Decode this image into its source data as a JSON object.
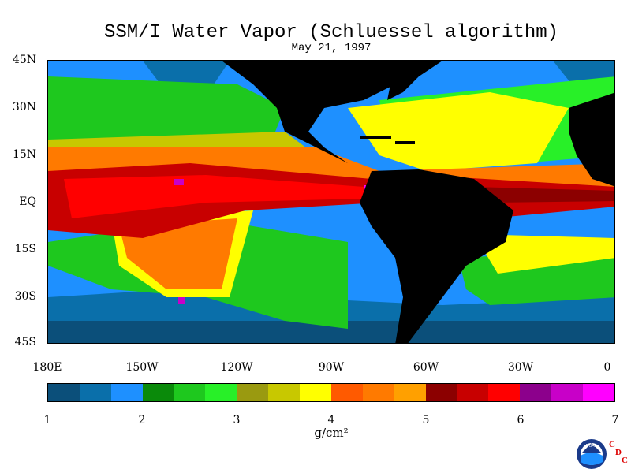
{
  "title": "SSM/I Water Vapor (Schluessel algorithm)",
  "subtitle": "May 21, 1997",
  "lat_labels": [
    "45N",
    "30N",
    "15N",
    "EQ",
    "15S",
    "30S",
    "45S"
  ],
  "lon_labels": [
    "180E",
    "150W",
    "120W",
    "90W",
    "60W",
    "30W",
    "0"
  ],
  "colorbar": {
    "colors": [
      "#0b4f7a",
      "#0a6faa",
      "#1e90ff",
      "#0a8a0a",
      "#1ec81e",
      "#28f028",
      "#9a9a10",
      "#c8c800",
      "#ffff00",
      "#ff5a00",
      "#ff7a00",
      "#ffa000",
      "#8c0000",
      "#c80000",
      "#ff0000",
      "#8c008c",
      "#c800c8",
      "#ff00ff"
    ],
    "tick_labels": [
      "1",
      "2",
      "3",
      "4",
      "5",
      "6",
      "7"
    ]
  },
  "units": "g/cm²",
  "logo": {
    "text": "NOAA",
    "name": "noaa-logo"
  },
  "cdc": [
    "C",
    "D",
    "C"
  ]
}
